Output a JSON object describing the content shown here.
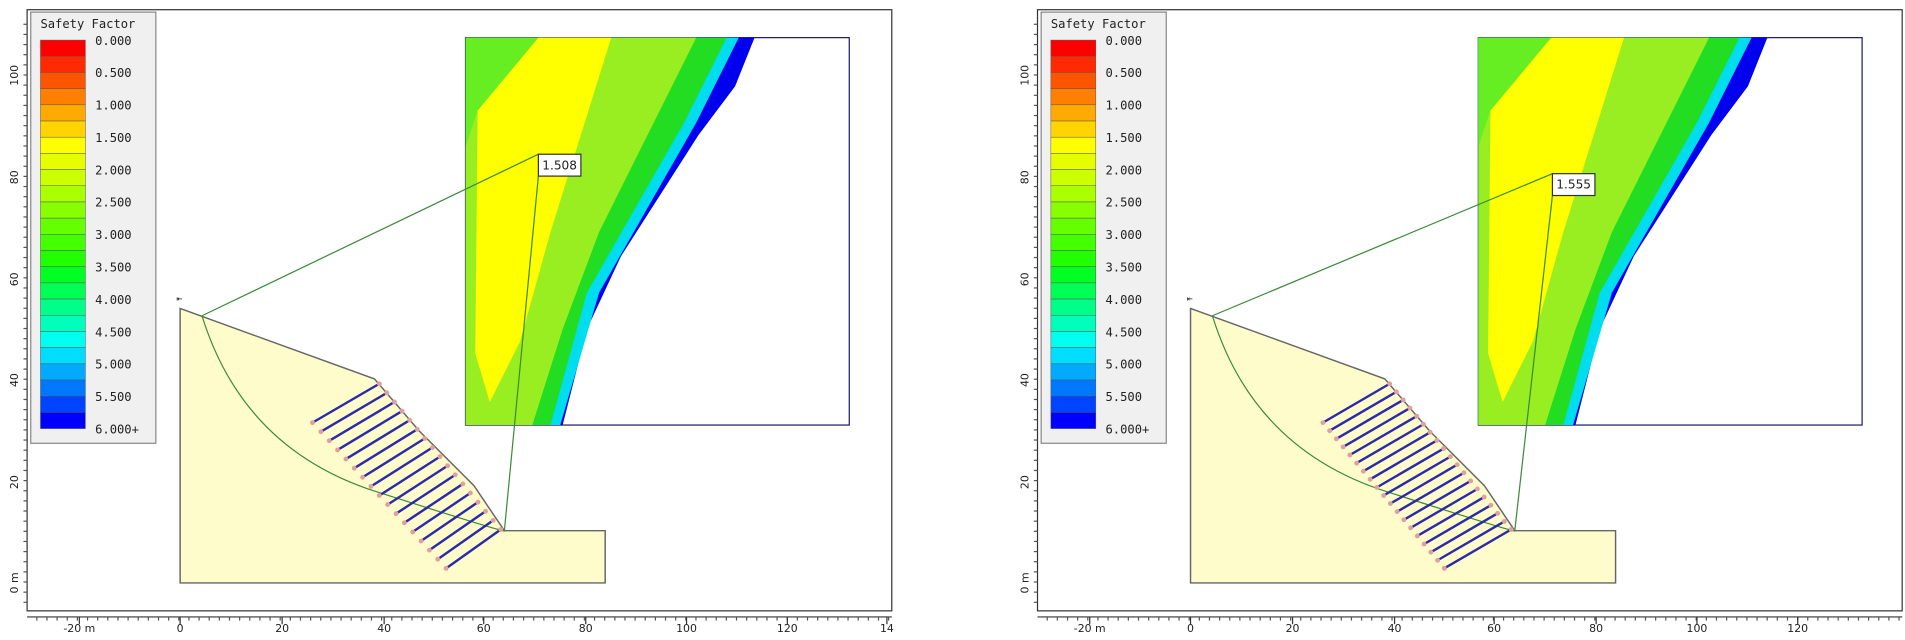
{
  "panels": [
    {
      "legend": {
        "title": "Safety Factor",
        "labels": [
          "0.000",
          "0.500",
          "1.000",
          "1.500",
          "2.000",
          "2.500",
          "3.000",
          "3.500",
          "4.000",
          "4.500",
          "5.000",
          "5.500",
          "6.000+"
        ]
      },
      "x_ticks": [
        "-20 m",
        "0",
        "20",
        "40",
        "60",
        "80",
        "100",
        "120",
        "14"
      ],
      "y_ticks": [
        "0 m",
        "20",
        "40",
        "60",
        "80",
        "100"
      ],
      "factor": "1.508"
    },
    {
      "legend": {
        "title": "Safety Factor",
        "labels": [
          "0.000",
          "0.500",
          "1.000",
          "1.500",
          "2.000",
          "2.500",
          "3.000",
          "3.500",
          "4.000",
          "4.500",
          "5.000",
          "5.500",
          "6.000+"
        ]
      },
      "x_ticks": [
        "-20 m",
        "0",
        "20",
        "40",
        "60",
        "80",
        "100",
        "120"
      ],
      "y_ticks": [
        "0 m",
        "20",
        "40",
        "60",
        "80",
        "100"
      ],
      "factor": "1.555"
    }
  ]
}
